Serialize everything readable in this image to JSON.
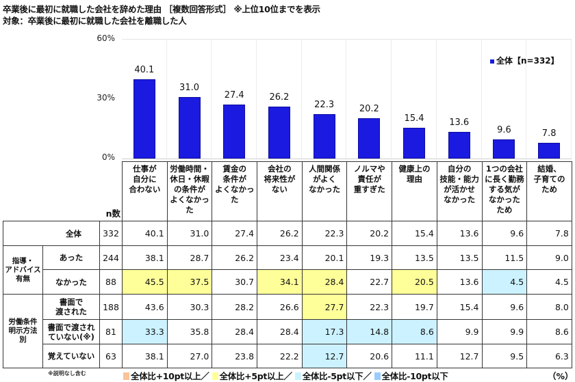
{
  "header": {
    "title": "卒業後に最初に就職した会社を辞めた理由 ［複数回答形式］ ※上位10位までを表示",
    "subtitle": "対象：卒業後に最初に就職した会社を離職した人"
  },
  "colors": {
    "bar": "#1a1ae0",
    "plus10": "#f9c49a",
    "plus5": "#ffff99",
    "minus5": "#ccf2ff",
    "minus10": "#99ccff"
  },
  "chart_data": {
    "type": "bar",
    "title": "卒業後に最初に就職した会社を辞めた理由 ［複数回答形式］ ※上位10位までを表示",
    "subtitle": "対象：卒業後に最初に就職した会社を離職した人",
    "xlabel": "",
    "ylabel": "",
    "ylim": [
      0,
      60
    ],
    "yticks": [
      "0%",
      "30%",
      "60%"
    ],
    "grid": "vertical separators",
    "legend": {
      "position": "top-right",
      "entries": [
        "全体【n=332】"
      ]
    },
    "categories": [
      "仕事が自分に合わない",
      "労働時間・休日・休暇の条件がよくなかった",
      "賃金の条件がよくなかった",
      "会社の将来性がない",
      "人間関係がよくなかった",
      "ノルマや責任が重すぎた",
      "健康上の理由",
      "自分の技能・能力が活かせなかった",
      "1つの会社に長く勤務する気がなかったため",
      "結婚、子育てのため"
    ],
    "series": [
      {
        "name": "全体【n=332】",
        "values": [
          40.1,
          31.0,
          27.4,
          26.2,
          22.3,
          20.2,
          15.4,
          13.6,
          9.6,
          7.8
        ]
      }
    ]
  },
  "chart": {
    "yticks": {
      "top": "60%",
      "mid": "30%",
      "bottom": "0%"
    },
    "legend_label": "全体【n=332】",
    "bar_labels": [
      "40.1",
      "31.0",
      "27.4",
      "26.2",
      "22.3",
      "20.2",
      "15.4",
      "13.6",
      "9.6",
      "7.8"
    ]
  },
  "table": {
    "n_header": "n数",
    "columns": [
      [
        "仕事が",
        "自分に",
        "合わない"
      ],
      [
        "労働時間・",
        "休日・休暇",
        "の条件が",
        "よくなかっ",
        "た"
      ],
      [
        "賃金の",
        "条件が",
        "よくなかっ",
        "た"
      ],
      [
        "会社の",
        "将来性が",
        "ない"
      ],
      [
        "人間関係",
        "がよく",
        "なかった"
      ],
      [
        "ノルマや",
        "責任が",
        "重すぎた"
      ],
      [
        "健康上の",
        "理由"
      ],
      [
        "自分の",
        "技能・能力",
        "が活かせ",
        "なかった"
      ],
      [
        "1つの会社",
        "に長く勤務",
        "する気が",
        "なかった",
        "ため"
      ],
      [
        "結婚、",
        "子育ての",
        "ため"
      ]
    ],
    "groups": {
      "advice": [
        "指導・",
        "アドバイス",
        "有無"
      ],
      "conditions": [
        "労働条件",
        "明示方法",
        "別"
      ]
    },
    "rows": [
      {
        "label": "全体",
        "n": "332",
        "values": [
          "40.1",
          "31.0",
          "27.4",
          "26.2",
          "22.3",
          "20.2",
          "15.4",
          "13.6",
          "9.6",
          "7.8"
        ],
        "hl": [
          "",
          "",
          "",
          "",
          "",
          "",
          "",
          "",
          "",
          ""
        ]
      },
      {
        "label": "あった",
        "n": "244",
        "values": [
          "38.1",
          "28.7",
          "26.2",
          "23.4",
          "20.1",
          "19.3",
          "13.5",
          "13.5",
          "11.5",
          "9.0"
        ],
        "hl": [
          "",
          "",
          "",
          "",
          "",
          "",
          "",
          "",
          "",
          ""
        ]
      },
      {
        "label": "なかった",
        "n": "88",
        "values": [
          "45.5",
          "37.5",
          "30.7",
          "34.1",
          "28.4",
          "22.7",
          "20.5",
          "13.6",
          "4.5",
          "4.5"
        ],
        "hl": [
          "hi5",
          "hi5",
          "",
          "hi5",
          "hi5",
          "",
          "hi5",
          "",
          "lo5",
          ""
        ]
      },
      {
        "label": "書面で\n渡された",
        "n": "188",
        "values": [
          "43.6",
          "30.3",
          "28.2",
          "26.6",
          "27.7",
          "22.3",
          "19.7",
          "15.4",
          "9.6",
          "8.0"
        ],
        "hl": [
          "",
          "",
          "",
          "",
          "hi5",
          "",
          "",
          "",
          "",
          ""
        ]
      },
      {
        "label": "書面で渡され\nていない(※)",
        "n": "81",
        "values": [
          "33.3",
          "35.8",
          "28.4",
          "28.4",
          "17.3",
          "14.8",
          "8.6",
          "9.9",
          "9.9",
          "8.6"
        ],
        "hl": [
          "lo5",
          "",
          "",
          "",
          "lo5",
          "lo5",
          "lo5",
          "",
          "",
          ""
        ]
      },
      {
        "label": "覚えていない",
        "n": "63",
        "values": [
          "38.1",
          "27.0",
          "23.8",
          "22.2",
          "12.7",
          "20.6",
          "11.1",
          "12.7",
          "9.5",
          "6.3"
        ],
        "hl": [
          "",
          "",
          "",
          "",
          "lo5",
          "",
          "",
          "",
          "",
          ""
        ]
      }
    ]
  },
  "footer": {
    "note": "※説明なし含む",
    "legend": [
      "全体比+10pt以上／",
      "全体比+5pt以上／",
      "全体比-5pt以下／",
      "全体比-10pt以下"
    ],
    "unit": "（%）"
  }
}
